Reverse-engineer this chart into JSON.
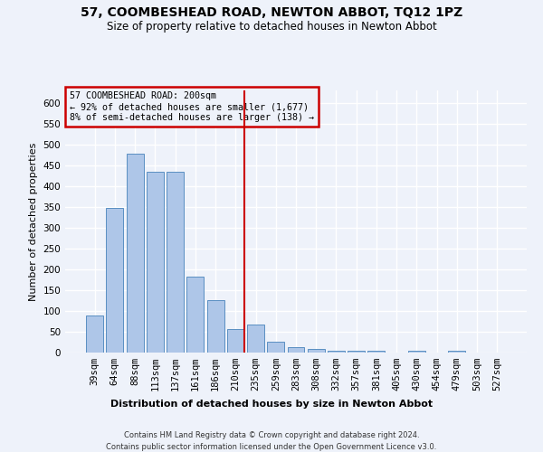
{
  "title1": "57, COOMBESHEAD ROAD, NEWTON ABBOT, TQ12 1PZ",
  "title2": "Size of property relative to detached houses in Newton Abbot",
  "xlabel": "Distribution of detached houses by size in Newton Abbot",
  "ylabel": "Number of detached properties",
  "footer1": "Contains HM Land Registry data © Crown copyright and database right 2024.",
  "footer2": "Contains public sector information licensed under the Open Government Licence v3.0.",
  "annotation_line1": "57 COOMBESHEAD ROAD: 200sqm",
  "annotation_line2": "← 92% of detached houses are smaller (1,677)",
  "annotation_line3": "8% of semi-detached houses are larger (138) →",
  "bar_labels": [
    "39sqm",
    "64sqm",
    "88sqm",
    "113sqm",
    "137sqm",
    "161sqm",
    "186sqm",
    "210sqm",
    "235sqm",
    "259sqm",
    "283sqm",
    "308sqm",
    "332sqm",
    "357sqm",
    "381sqm",
    "405sqm",
    "430sqm",
    "454sqm",
    "479sqm",
    "503sqm",
    "527sqm"
  ],
  "bar_values": [
    88,
    347,
    477,
    434,
    434,
    183,
    125,
    57,
    68,
    25,
    13,
    9,
    5,
    5,
    5,
    0,
    5,
    0,
    5,
    0,
    0
  ],
  "bar_color": "#aec6e8",
  "bar_edge_color": "#5a8fc2",
  "vline_x_index": 7,
  "vline_color": "#cc0000",
  "ylim": [
    0,
    630
  ],
  "yticks": [
    0,
    50,
    100,
    150,
    200,
    250,
    300,
    350,
    400,
    450,
    500,
    550,
    600
  ],
  "bg_color": "#eef2fa",
  "grid_color": "#ffffff",
  "annotation_box_color": "#cc0000",
  "title1_fontsize": 10,
  "title2_fontsize": 8.5,
  "xlabel_fontsize": 8,
  "ylabel_fontsize": 8,
  "tick_fontsize": 7.5,
  "footer_fontsize": 6
}
